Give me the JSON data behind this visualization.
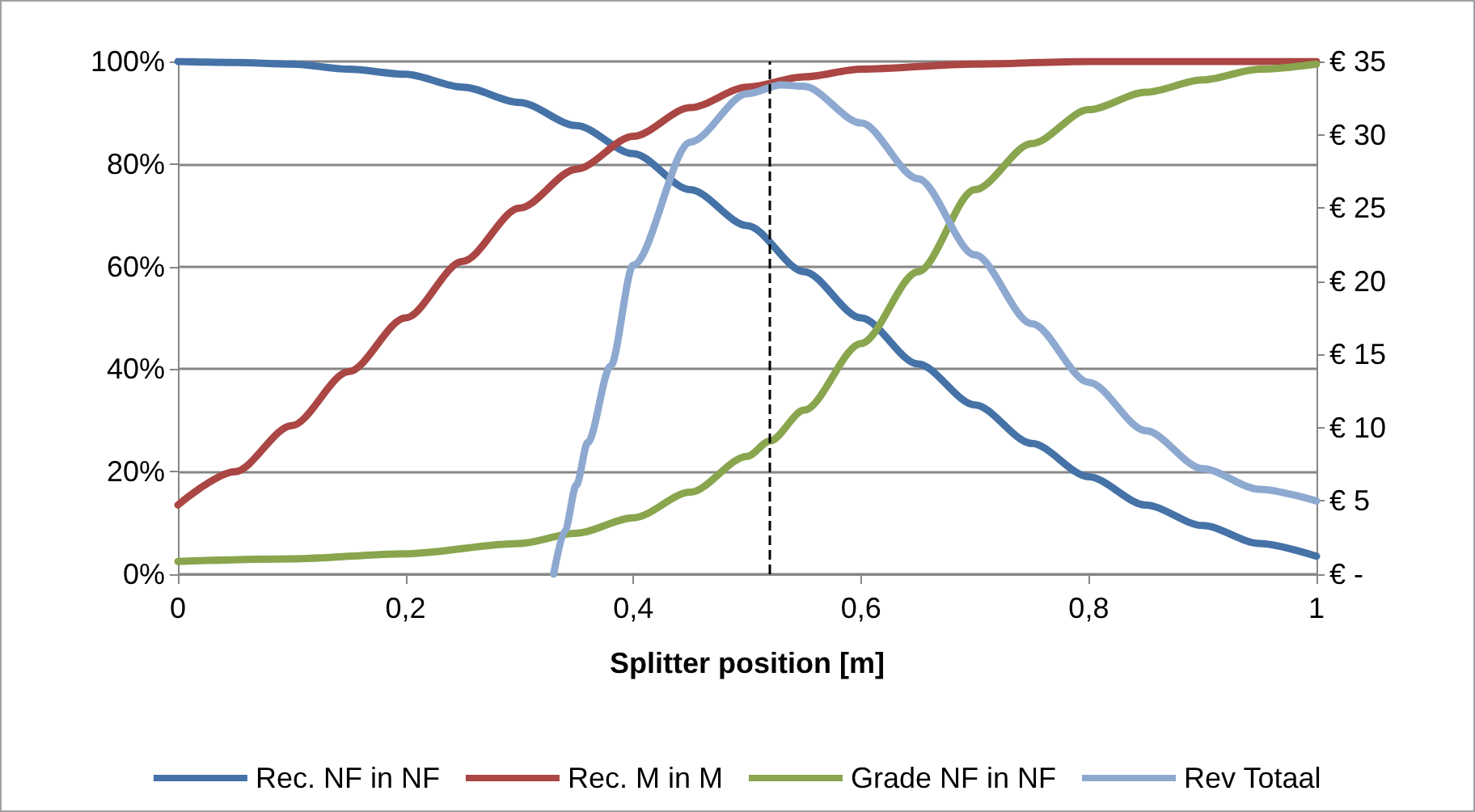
{
  "chart_data": {
    "type": "line",
    "xlabel": "Splitter position [m]",
    "xlim": [
      0,
      1
    ],
    "xticks": [
      0,
      {
        "value": 0.2,
        "label": "0,2"
      },
      {
        "value": 0.4,
        "label": "0,4"
      },
      {
        "value": 0.6,
        "label": "0,6"
      },
      {
        "value": 0.8,
        "label": "0,8"
      },
      1
    ],
    "ylim": [
      0,
      100
    ],
    "yticks": [
      {
        "value": 0,
        "label": "0%"
      },
      {
        "value": 20,
        "label": "20%"
      },
      {
        "value": 40,
        "label": "40%"
      },
      {
        "value": 60,
        "label": "60%"
      },
      {
        "value": 80,
        "label": "80%"
      },
      {
        "value": 100,
        "label": "100%"
      }
    ],
    "y2lim": [
      0,
      35
    ],
    "y2ticks": [
      {
        "value": 0,
        "label": "€ -"
      },
      {
        "value": 5,
        "label": "€ 5"
      },
      {
        "value": 10,
        "label": "€ 10"
      },
      {
        "value": 15,
        "label": "€ 15"
      },
      {
        "value": 20,
        "label": "€ 20"
      },
      {
        "value": 25,
        "label": "€ 25"
      },
      {
        "value": 30,
        "label": "€ 30"
      },
      {
        "value": 35,
        "label": "€ 35"
      }
    ],
    "grid": "y",
    "legend": "bottom",
    "marker": "none",
    "line_style": "solid",
    "ref_lines": [
      {
        "axis": "x",
        "value": 0.52,
        "color": "#000000",
        "line_style": "dashed"
      }
    ],
    "series": [
      {
        "name": "Rec. NF in NF",
        "color": "#4572a7",
        "x": [
          0,
          0.05,
          0.1,
          0.15,
          0.2,
          0.25,
          0.3,
          0.35,
          0.4,
          0.45,
          0.5,
          0.55,
          0.6,
          0.65,
          0.7,
          0.75,
          0.8,
          0.85,
          0.9,
          0.95,
          1
        ],
        "values": [
          100,
          99.8,
          99.5,
          98.5,
          97.5,
          95,
          92,
          87.5,
          82,
          75,
          68,
          59,
          50,
          41,
          33,
          25.5,
          19,
          13.5,
          9.5,
          6,
          3.5
        ]
      },
      {
        "name": "Rec. M in M",
        "color": "#aa4643",
        "x": [
          0,
          0.05,
          0.1,
          0.15,
          0.2,
          0.25,
          0.3,
          0.35,
          0.4,
          0.45,
          0.5,
          0.55,
          0.6,
          0.7,
          0.8,
          0.9,
          1
        ],
        "values": [
          13.5,
          20,
          29,
          39.5,
          50,
          61,
          71.4,
          79,
          85.4,
          91,
          95,
          97,
          98.5,
          99.5,
          100,
          100,
          100
        ]
      },
      {
        "name": "Grade NF in NF",
        "color": "#89a54e",
        "x": [
          0,
          0.1,
          0.2,
          0.3,
          0.35,
          0.4,
          0.45,
          0.5,
          0.52,
          0.55,
          0.6,
          0.65,
          0.7,
          0.75,
          0.8,
          0.85,
          0.9,
          0.95,
          1
        ],
        "values": [
          2.5,
          3,
          4,
          6,
          8,
          11,
          16,
          23,
          26,
          32,
          45,
          59,
          75,
          84,
          90.6,
          94,
          96.4,
          98.5,
          99.5
        ]
      },
      {
        "name": "Rev Totaal",
        "color": "#8ea9d0",
        "axis": "y2",
        "x": [
          0.33,
          0.34,
          0.35,
          0.36,
          0.38,
          0.4,
          0.45,
          0.5,
          0.53,
          0.55,
          0.6,
          0.65,
          0.7,
          0.75,
          0.8,
          0.85,
          0.9,
          0.95,
          1
        ],
        "values": [
          0,
          3,
          6.1,
          9,
          14.2,
          21.1,
          29.5,
          32.8,
          33.4,
          33.3,
          30.8,
          27,
          21.8,
          17.1,
          13.1,
          9.8,
          7.2,
          5.8,
          5
        ]
      }
    ]
  }
}
